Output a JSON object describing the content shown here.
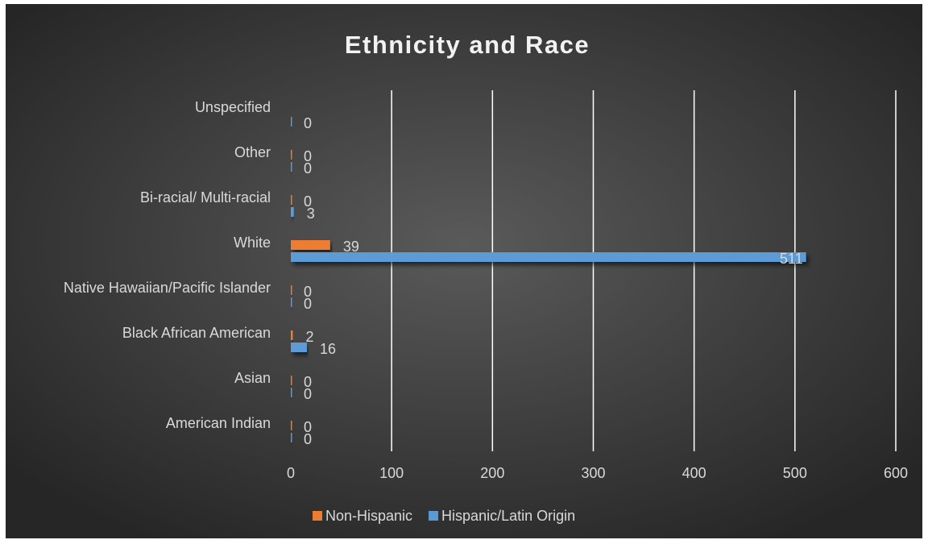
{
  "chart_data": {
    "type": "hbar",
    "title": "Ethnicity and Race",
    "categories": [
      "American Indian",
      "Asian",
      "Black African American",
      "Native Hawaiian/Pacific Islander",
      "White",
      "Bi-racial/ Multi-racial",
      "Other",
      "Unspecified"
    ],
    "series": [
      {
        "name": "Non-Hispanic",
        "color": "#ed7d31",
        "values": [
          0,
          0,
          2,
          0,
          39,
          0,
          0,
          null
        ]
      },
      {
        "name": "Hispanic/Latin Origin",
        "color": "#5b9bd5",
        "values": [
          0,
          0,
          16,
          0,
          511,
          3,
          0,
          0
        ]
      }
    ],
    "xlim": [
      0,
      600
    ],
    "xticks": [
      0,
      100,
      200,
      300,
      400,
      500,
      600
    ],
    "grid": true,
    "legend": "bottom"
  }
}
